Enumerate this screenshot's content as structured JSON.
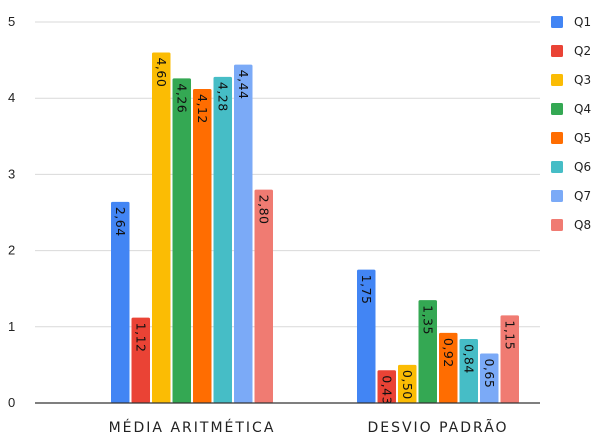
{
  "chart_data": {
    "type": "bar",
    "categories": [
      "MÉDIA ARITMÉTICA",
      "DESVIO PADRÃO"
    ],
    "series": [
      {
        "name": "Q1",
        "color": "#4285F4",
        "values": [
          2.64,
          1.75
        ],
        "labels": [
          "2,64",
          "1,75"
        ]
      },
      {
        "name": "Q2",
        "color": "#EA4335",
        "values": [
          1.12,
          0.43
        ],
        "labels": [
          "1,12",
          "0,43"
        ]
      },
      {
        "name": "Q3",
        "color": "#FBBC04",
        "values": [
          4.6,
          0.5
        ],
        "labels": [
          "4,60",
          "0,50"
        ]
      },
      {
        "name": "Q4",
        "color": "#34A853",
        "values": [
          4.26,
          1.35
        ],
        "labels": [
          "4,26",
          "1,35"
        ]
      },
      {
        "name": "Q5",
        "color": "#FF6D01",
        "values": [
          4.12,
          0.92
        ],
        "labels": [
          "4,12",
          "0,92"
        ]
      },
      {
        "name": "Q6",
        "color": "#46BDC6",
        "values": [
          4.28,
          0.84
        ],
        "labels": [
          "4,28",
          "0,84"
        ]
      },
      {
        "name": "Q7",
        "color": "#7BAAF7",
        "values": [
          4.44,
          0.65
        ],
        "labels": [
          "4,44",
          "0,65"
        ]
      },
      {
        "name": "Q8",
        "color": "#F07B72",
        "values": [
          2.8,
          1.15
        ],
        "labels": [
          "2,80",
          "1,15"
        ]
      }
    ],
    "ylim": [
      0,
      5
    ],
    "yticks": [
      "0",
      "1",
      "2",
      "3",
      "4",
      "5"
    ],
    "grid": true,
    "legend_position": "right"
  }
}
